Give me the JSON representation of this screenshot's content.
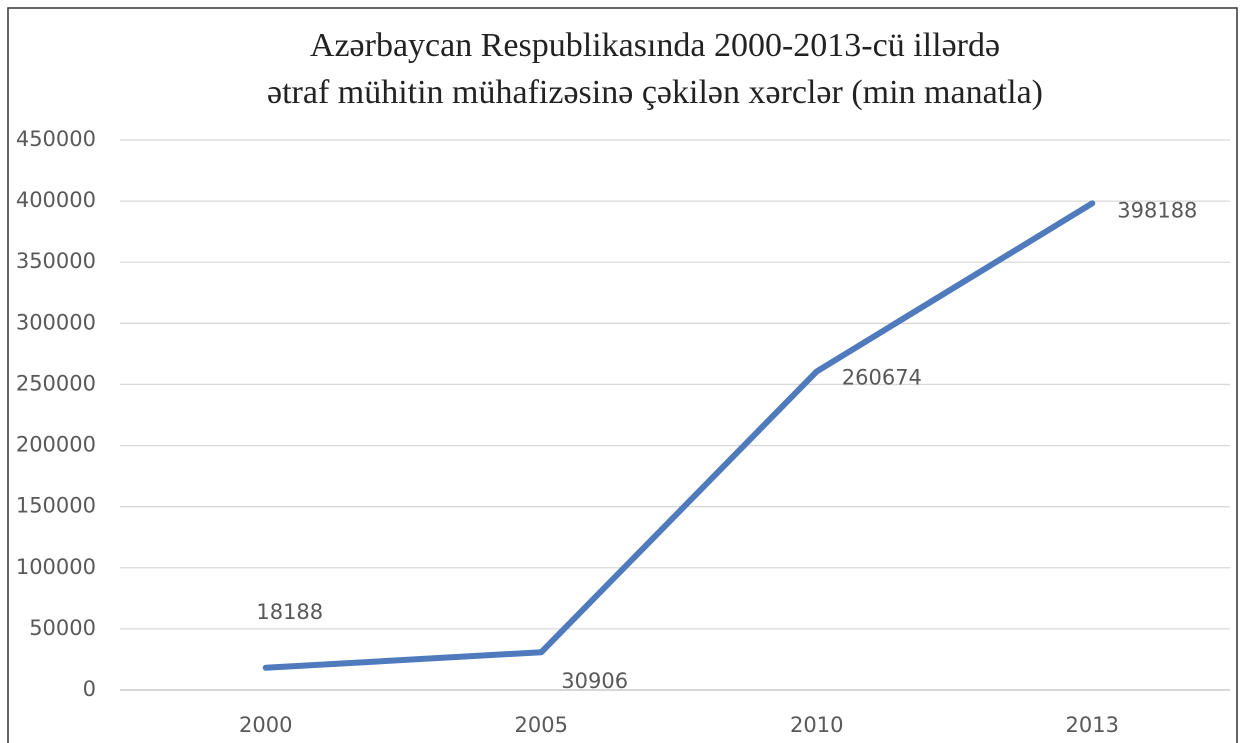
{
  "chart_data": {
    "type": "line",
    "title": [
      "Azərbaycan Respublikasında 2000-2013-cü illərdə",
      "ətraf mühitin mühafizəsinə çəkilən xərclər (min manatla)"
    ],
    "categories": [
      "2000",
      "2005",
      "2010",
      "2013"
    ],
    "values": [
      18188,
      30906,
      260674,
      398188
    ],
    "color": "#4f7bbd",
    "ylim": [
      0,
      450000
    ],
    "yticks": [
      0,
      50000,
      100000,
      150000,
      200000,
      250000,
      300000,
      350000,
      400000,
      450000
    ],
    "grid": true,
    "data_labels": true
  }
}
